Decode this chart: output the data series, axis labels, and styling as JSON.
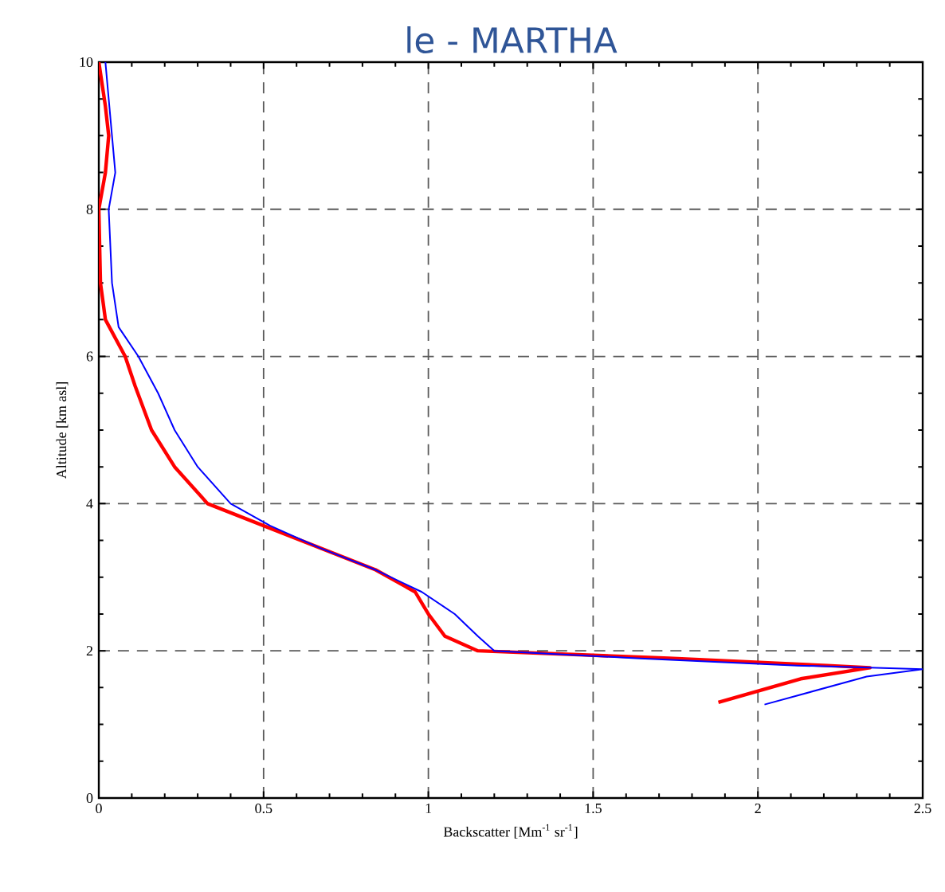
{
  "chart_data": {
    "type": "line",
    "title": "le - MARTHA",
    "xlabel": "Backscatter [Mm$^{-1}$ sr$^{-1}$]",
    "ylabel": "Altitude [km asl]",
    "xlim": [
      0,
      2.5
    ],
    "ylim": [
      0,
      10
    ],
    "xticks": [
      0,
      0.5,
      1,
      1.5,
      2,
      2.5
    ],
    "yticks": [
      0,
      2,
      4,
      6,
      8,
      10
    ],
    "grid": true,
    "line_style": "solid",
    "marker": "none",
    "series": [
      {
        "color": "#ff0000",
        "x": [
          0.0,
          0.02,
          0.03,
          0.02,
          0.0,
          0.005,
          0.02,
          0.08,
          0.11,
          0.16,
          0.23,
          0.33,
          0.5,
          0.67,
          0.84,
          0.96,
          1.0,
          1.05,
          1.15,
          1.73,
          2.21,
          2.34,
          2.13,
          1.88
        ],
        "values": [
          10,
          9.4,
          9,
          8.5,
          8,
          7,
          6.5,
          6,
          5.6,
          5,
          4.5,
          4,
          3.7,
          3.4,
          3.1,
          2.8,
          2.5,
          2.2,
          2.0,
          1.9,
          1.8,
          1.77,
          1.62,
          1.3
        ]
      },
      {
        "color": "#0000ff",
        "x": [
          0.02,
          0.04,
          0.05,
          0.03,
          0.04,
          0.06,
          0.12,
          0.18,
          0.23,
          0.3,
          0.4,
          0.52,
          0.67,
          0.84,
          0.98,
          1.08,
          1.15,
          1.2,
          1.63,
          2.12,
          2.5,
          2.33,
          2.02
        ],
        "values": [
          10,
          9,
          8.5,
          8,
          7,
          6.4,
          6,
          5.5,
          5,
          4.5,
          4,
          3.7,
          3.4,
          3.1,
          2.8,
          2.5,
          2.2,
          2.0,
          1.9,
          1.8,
          1.75,
          1.65,
          1.27
        ]
      }
    ]
  }
}
